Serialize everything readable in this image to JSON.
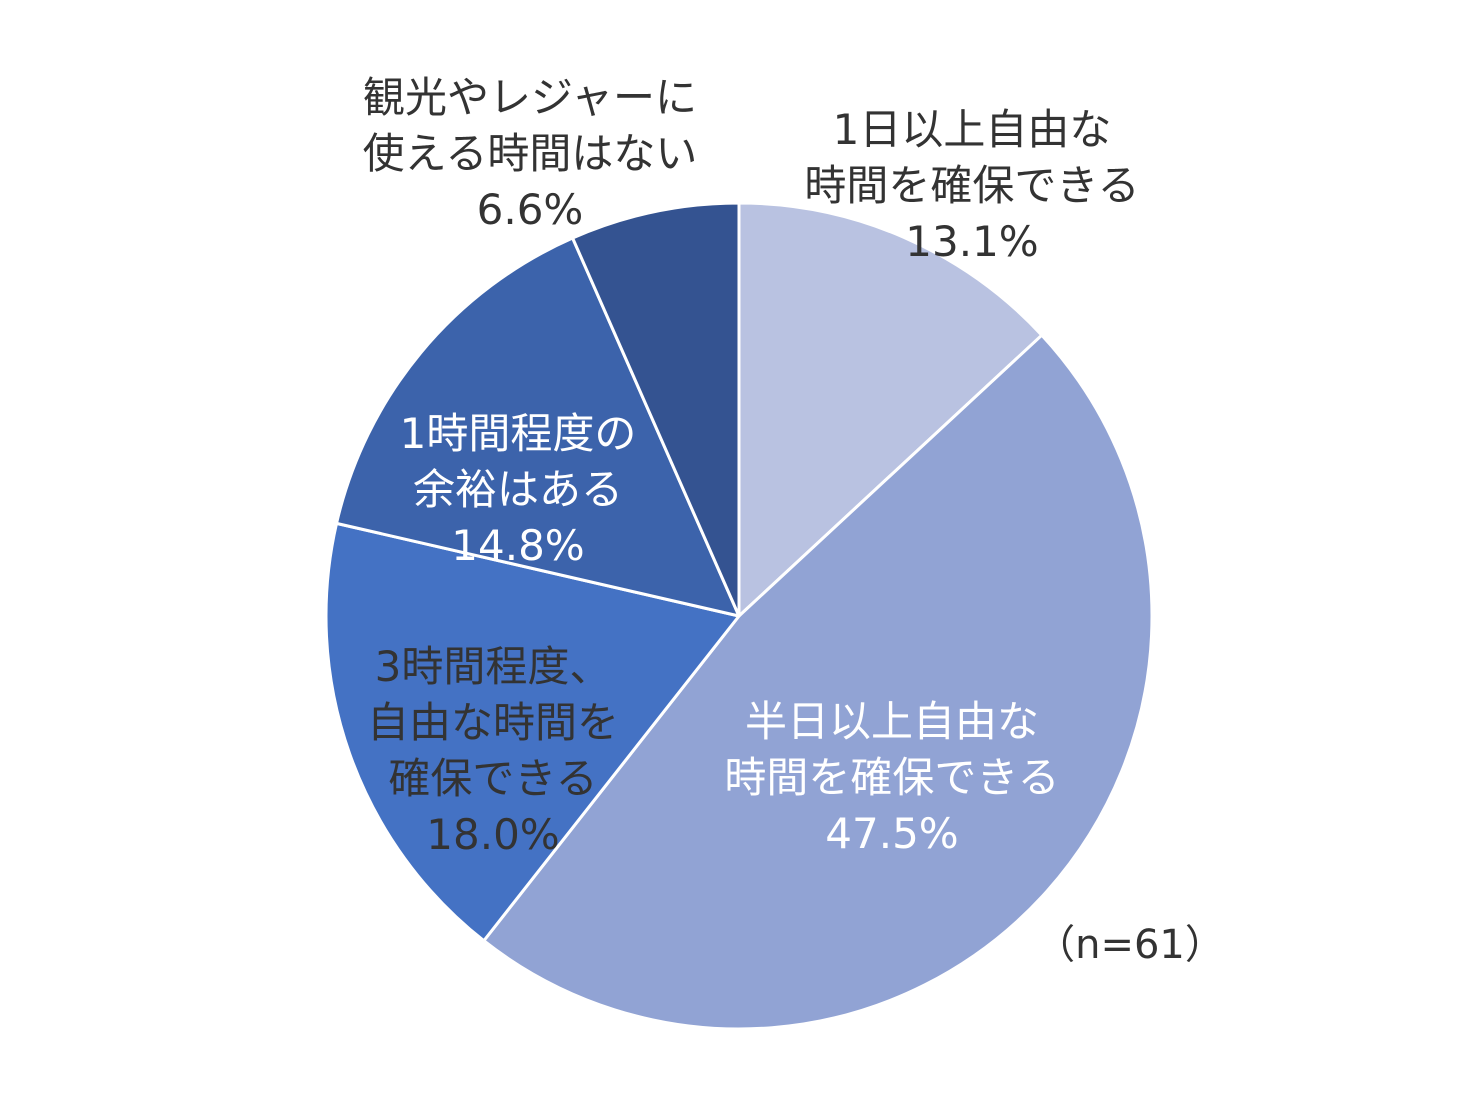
{
  "chart_data": {
    "type": "pie",
    "title": "",
    "note": "（n=61）",
    "start_angle_deg": 0,
    "direction": "clockwise",
    "slices": [
      {
        "label_lines": [
          "1日以上自由な",
          "時間を確保できる"
        ],
        "value_label": "13.1%",
        "value": 13.1,
        "color": "#b9c2e1",
        "label_color": "#333333"
      },
      {
        "label_lines": [
          "半日以上自由な",
          "時間を確保できる"
        ],
        "value_label": "47.5%",
        "value": 47.5,
        "color": "#91a3d4",
        "label_color": "#ffffff"
      },
      {
        "label_lines": [
          "3時間程度、",
          "自由な時間を",
          "確保できる"
        ],
        "value_label": "18.0%",
        "value": 18.0,
        "color": "#4472c4",
        "label_color": "#333333"
      },
      {
        "label_lines": [
          "1時間程度の",
          "余裕はある"
        ],
        "value_label": "14.8%",
        "value": 14.8,
        "color": "#3c63ab",
        "label_color": "#ffffff"
      },
      {
        "label_lines": [
          "観光やレジャーに",
          "使える時間はない"
        ],
        "value_label": "6.6%",
        "value": 6.6,
        "color": "#345391",
        "label_color": "#333333"
      }
    ]
  }
}
